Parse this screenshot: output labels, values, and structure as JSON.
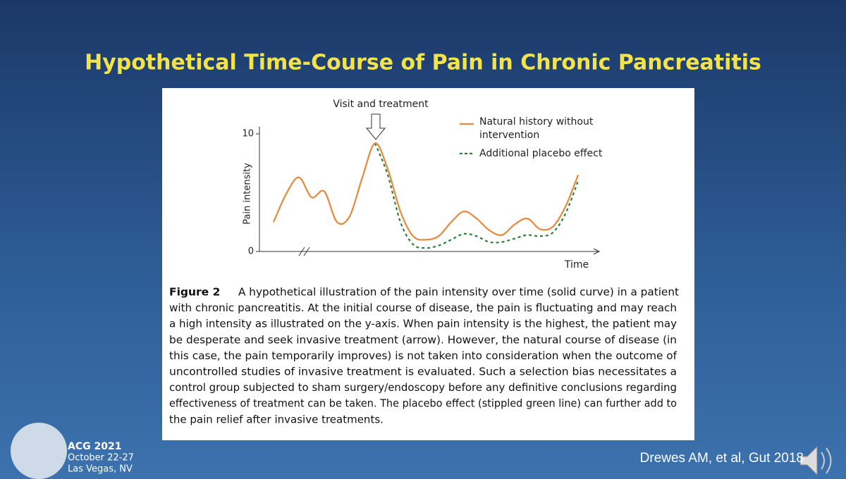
{
  "slide": {
    "title": "Hypothetical Time-Course of Pain in Chronic Pancreatitis",
    "caption_label": "Figure 2",
    "caption_lines": [
      "A hypothetical illustration of the pain intensity over time (solid curve) in a patient",
      "with chronic pancreatitis. At the initial course of disease, the pain is fluctuating and may reach",
      "a high intensity as illustrated on the y-axis. When pain intensity is the highest, the patient may",
      "be desperate and seek invasive treatment (arrow). However, the natural course of disease (in",
      "this case, the pain temporarily improves) is not taken into consideration when the outcome of",
      "uncontrolled studies of invasive treatment is evaluated. Such a selection bias necessitates a",
      "control group subjected to sham surgery/endoscopy before any definitive conclusions regarding",
      "effectiveness of treatment can be taken. The placebo effect (stippled green line) can further add to",
      "the pain relief after invasive treatments."
    ],
    "event": [
      "ACG 2021",
      "October 22-27",
      "Las Vegas, NV"
    ],
    "citation": "Drewes AM, et al, Gut 2018"
  },
  "chart_data": {
    "type": "line",
    "annotation": "Visit and treatment",
    "x_label": "Time",
    "y_label": "Pain intensity",
    "categories": [
      null,
      null,
      null,
      null,
      null,
      null,
      null,
      null,
      null,
      null,
      null,
      null,
      null,
      null,
      null,
      null,
      null,
      null,
      null,
      null,
      null,
      null,
      null,
      null,
      null
    ],
    "ylim": [
      0,
      10
    ],
    "yticks": [
      0,
      10
    ],
    "series": [
      {
        "name": "Natural history without intervention",
        "color": "#e8883a",
        "dash": false,
        "values": [
          2.5,
          4.9,
          6.3,
          4.6,
          5.1,
          2.5,
          3.0,
          6.3,
          9.2,
          7.0,
          3.4,
          1.3,
          1.0,
          1.3,
          2.5,
          3.4,
          2.8,
          1.8,
          1.4,
          2.3,
          2.8,
          1.9,
          2.1,
          3.8,
          6.5
        ]
      },
      {
        "name": "Additional placebo effect",
        "color": "#2e7d3a",
        "dash": true,
        "values": [
          null,
          null,
          null,
          null,
          null,
          null,
          null,
          null,
          9.2,
          6.5,
          2.5,
          0.6,
          0.3,
          0.5,
          1.0,
          1.5,
          1.3,
          0.8,
          0.8,
          1.1,
          1.4,
          1.3,
          1.6,
          3.2,
          6.0
        ]
      }
    ]
  }
}
